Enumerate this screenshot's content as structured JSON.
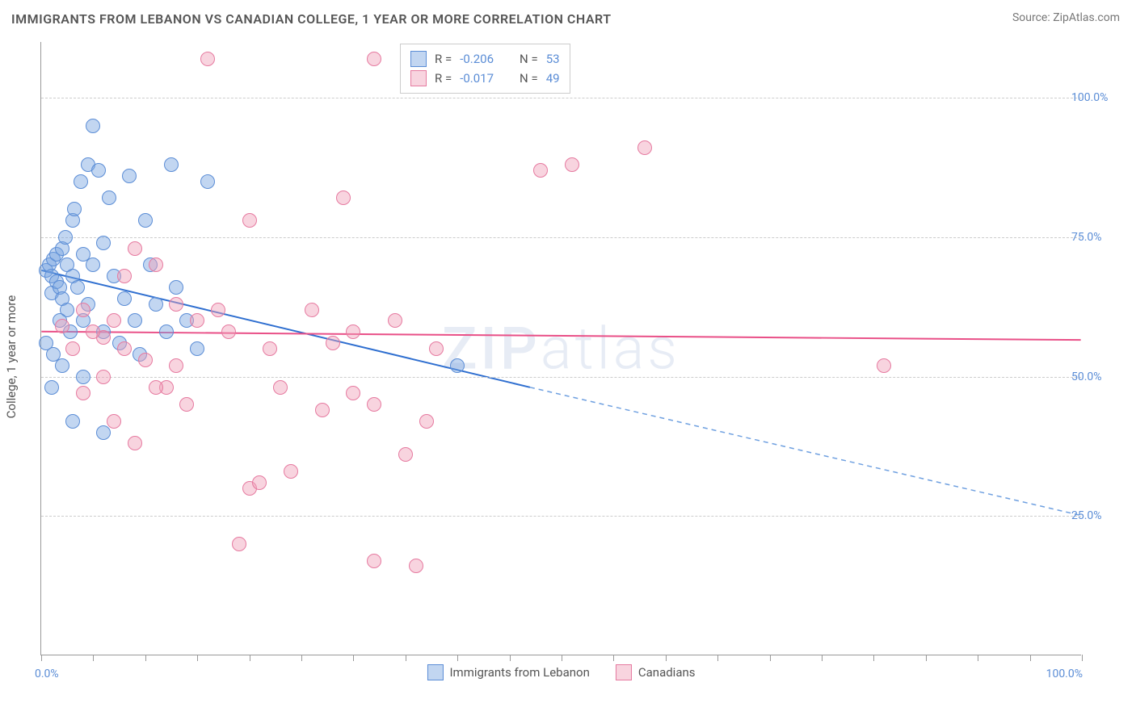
{
  "title": "IMMIGRANTS FROM LEBANON VS CANADIAN COLLEGE, 1 YEAR OR MORE CORRELATION CHART",
  "source_label": "Source:",
  "source_name": "ZipAtlas.com",
  "yaxis_title": "College, 1 year or more",
  "watermark": "ZIPatlas",
  "chart": {
    "type": "scatter",
    "background_color": "#ffffff",
    "grid_color": "#cccccc",
    "axis_color": "#999999",
    "tick_label_color": "#5b8dd6",
    "xlim": [
      0,
      100
    ],
    "ylim": [
      0,
      110
    ],
    "yticks": [
      25,
      50,
      75,
      100
    ],
    "ytick_labels": [
      "25.0%",
      "50.0%",
      "75.0%",
      "100.0%"
    ],
    "x_label_min": "0.0%",
    "x_label_max": "100.0%",
    "x_minor_ticks": [
      0,
      5,
      10,
      15,
      20,
      25,
      30,
      35,
      40,
      45,
      50,
      55,
      60,
      65,
      70,
      75,
      80,
      85,
      90,
      95,
      100
    ],
    "marker_radius": 9,
    "series": [
      {
        "name": "Immigrants from Lebanon",
        "fill": "rgba(120,165,225,0.45)",
        "stroke": "#5b8dd6",
        "R": "-0.206",
        "N": "53",
        "trend": {
          "x1": 0,
          "y1": 69,
          "x2": 47,
          "y2": 48,
          "color": "#2f6fd0",
          "width": 2,
          "dash": ""
        },
        "trend_ext": {
          "x1": 47,
          "y1": 48,
          "x2": 100,
          "y2": 25,
          "color": "#6fa0e0",
          "width": 1.5,
          "dash": "6,5"
        },
        "points": [
          [
            0.5,
            69
          ],
          [
            0.8,
            70
          ],
          [
            1,
            68
          ],
          [
            1,
            65
          ],
          [
            1.2,
            71
          ],
          [
            1.5,
            72
          ],
          [
            1.5,
            67
          ],
          [
            1.8,
            66
          ],
          [
            2,
            73
          ],
          [
            2,
            64
          ],
          [
            2.3,
            75
          ],
          [
            2.5,
            70
          ],
          [
            2.5,
            62
          ],
          [
            3,
            78
          ],
          [
            3,
            68
          ],
          [
            3.2,
            80
          ],
          [
            3.5,
            66
          ],
          [
            3.8,
            85
          ],
          [
            4,
            72
          ],
          [
            4,
            60
          ],
          [
            4.5,
            88
          ],
          [
            4.5,
            63
          ],
          [
            5,
            95
          ],
          [
            5,
            70
          ],
          [
            5.5,
            87
          ],
          [
            6,
            74
          ],
          [
            6,
            58
          ],
          [
            6.5,
            82
          ],
          [
            7,
            68
          ],
          [
            7.5,
            56
          ],
          [
            8,
            64
          ],
          [
            8.5,
            86
          ],
          [
            9,
            60
          ],
          [
            9.5,
            54
          ],
          [
            10,
            78
          ],
          [
            10.5,
            70
          ],
          [
            11,
            63
          ],
          [
            12,
            58
          ],
          [
            12.5,
            88
          ],
          [
            13,
            66
          ],
          [
            14,
            60
          ],
          [
            15,
            55
          ],
          [
            16,
            85
          ],
          [
            3,
            42
          ],
          [
            6,
            40
          ],
          [
            1,
            48
          ],
          [
            2,
            52
          ],
          [
            4,
            50
          ],
          [
            0.5,
            56
          ],
          [
            1.2,
            54
          ],
          [
            1.8,
            60
          ],
          [
            2.8,
            58
          ],
          [
            40,
            52
          ]
        ]
      },
      {
        "name": "Canadians",
        "fill": "rgba(240,160,185,0.45)",
        "stroke": "#e67aa0",
        "R": "-0.017",
        "N": "49",
        "trend": {
          "x1": 0,
          "y1": 58,
          "x2": 100,
          "y2": 56.5,
          "color": "#e94f87",
          "width": 2,
          "dash": ""
        },
        "points": [
          [
            16,
            107
          ],
          [
            32,
            107
          ],
          [
            58,
            91
          ],
          [
            51,
            88
          ],
          [
            29,
            82
          ],
          [
            20,
            78
          ],
          [
            9,
            73
          ],
          [
            11,
            70
          ],
          [
            8,
            68
          ],
          [
            13,
            63
          ],
          [
            15,
            60
          ],
          [
            18,
            58
          ],
          [
            26,
            62
          ],
          [
            30,
            58
          ],
          [
            28,
            56
          ],
          [
            22,
            55
          ],
          [
            6,
            57
          ],
          [
            7,
            60
          ],
          [
            4,
            62
          ],
          [
            5,
            58
          ],
          [
            3,
            55
          ],
          [
            2,
            59
          ],
          [
            10,
            53
          ],
          [
            12,
            48
          ],
          [
            9,
            38
          ],
          [
            7,
            42
          ],
          [
            14,
            45
          ],
          [
            19,
            20
          ],
          [
            20,
            30
          ],
          [
            21,
            31
          ],
          [
            24,
            33
          ],
          [
            30,
            47
          ],
          [
            32,
            45
          ],
          [
            35,
            36
          ],
          [
            37,
            42
          ],
          [
            32,
            17
          ],
          [
            36,
            16
          ],
          [
            48,
            87
          ],
          [
            81,
            52
          ],
          [
            4,
            47
          ],
          [
            6,
            50
          ],
          [
            8,
            55
          ],
          [
            11,
            48
          ],
          [
            13,
            52
          ],
          [
            17,
            62
          ],
          [
            23,
            48
          ],
          [
            27,
            44
          ],
          [
            34,
            60
          ],
          [
            38,
            55
          ]
        ]
      }
    ]
  },
  "legend_top": {
    "r_label": "R =",
    "n_label": "N ="
  },
  "legend_bottom": [
    {
      "label": "Immigrants from Lebanon",
      "fill": "rgba(120,165,225,0.45)",
      "stroke": "#5b8dd6"
    },
    {
      "label": "Canadians",
      "fill": "rgba(240,160,185,0.45)",
      "stroke": "#e67aa0"
    }
  ]
}
